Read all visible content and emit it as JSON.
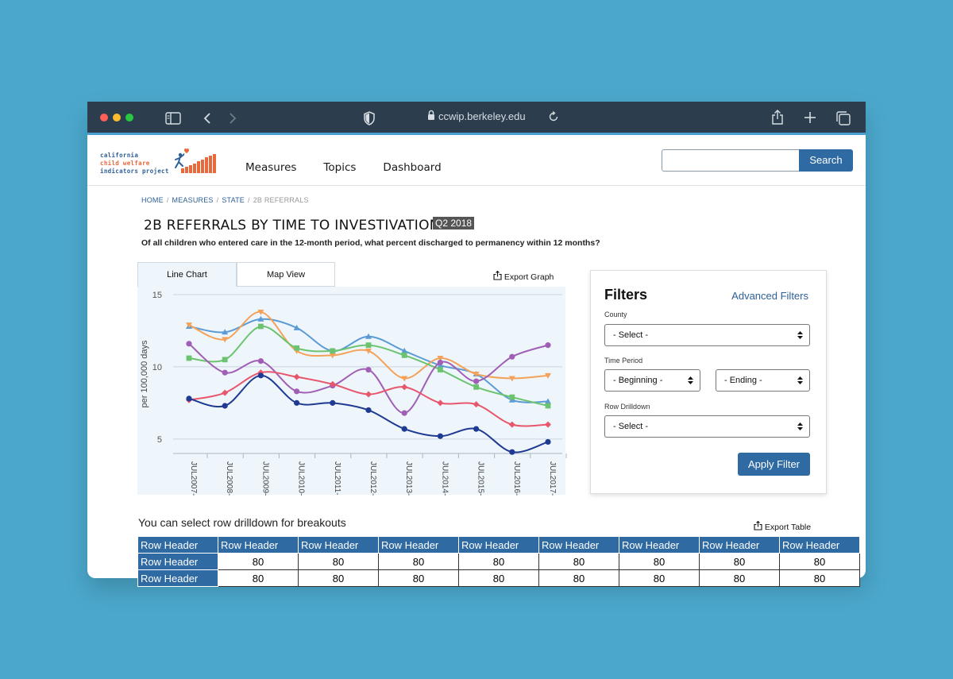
{
  "browser": {
    "url": "ccwip.berkeley.edu"
  },
  "logo": {
    "line1": "california",
    "line2": "child welfare",
    "line3": "indicators project"
  },
  "nav": {
    "items": [
      "Measures",
      "Topics",
      "Dashboard"
    ]
  },
  "search": {
    "button_label": "Search",
    "placeholder": ""
  },
  "breadcrumb": {
    "items": [
      "HOME",
      "MEASURES",
      "STATE"
    ],
    "current": "2B REFERRALS"
  },
  "page": {
    "title": "2B REFERRALS BY TIME TO INVESTIVATION",
    "badge": "Q2 2018",
    "subtitle": "Of all children who entered care in the 12-month period, what percent discharged to permanency within 12 months?"
  },
  "tabs": {
    "line_chart": "Line Chart",
    "map_view": "Map View"
  },
  "export_graph_label": "Export Graph",
  "export_table_label": "Export Table",
  "chart_data": {
    "type": "line",
    "ylabel": "per 100,000 days",
    "xlabel": "",
    "ylim": [
      4,
      15
    ],
    "yticks": [
      5,
      10,
      15
    ],
    "categories": [
      "JUL2007-",
      "JUL2008-",
      "JUL2009-",
      "JUL2010-",
      "JUL2011-",
      "JUL2012-",
      "JUL2013-",
      "JUL2014-",
      "JUL2015-",
      "JUL2016-",
      "JUL2017-"
    ],
    "series": [
      {
        "color": "#5b9bd5",
        "marker": "triangle",
        "values": [
          12.8,
          12.4,
          13.3,
          12.7,
          11.1,
          12.1,
          11.1,
          10.1,
          9.5,
          7.7,
          7.6
        ]
      },
      {
        "color": "#f4a259",
        "marker": "triangle-down",
        "values": [
          12.9,
          11.9,
          13.8,
          11.1,
          10.8,
          11.1,
          9.2,
          10.6,
          9.5,
          9.2,
          9.4
        ]
      },
      {
        "color": "#6cc36f",
        "marker": "square",
        "values": [
          10.6,
          10.5,
          12.8,
          11.3,
          11.1,
          11.5,
          10.8,
          9.8,
          8.6,
          7.9,
          7.3
        ]
      },
      {
        "color": "#a05fb5",
        "marker": "circle",
        "values": [
          11.6,
          9.6,
          10.4,
          8.3,
          8.7,
          9.8,
          6.8,
          10.3,
          9.0,
          10.7,
          11.5
        ]
      },
      {
        "color": "#e8566c",
        "marker": "diamond",
        "values": [
          7.7,
          8.2,
          9.6,
          9.3,
          8.8,
          8.1,
          8.6,
          7.5,
          7.4,
          6.0,
          6.0
        ]
      },
      {
        "color": "#1f3a93",
        "marker": "circle",
        "values": [
          7.8,
          7.3,
          9.4,
          7.5,
          7.5,
          7.0,
          5.7,
          5.2,
          5.7,
          4.1,
          4.8
        ]
      }
    ]
  },
  "filters": {
    "title": "Filters",
    "advanced": "Advanced Filters",
    "county_label": "County",
    "county_value": "- Select -",
    "time_label": "Time Period",
    "beginning": "- Beginning -",
    "ending": "- Ending -",
    "drill_label": "Row Drilldown",
    "drill_value": "- Select -",
    "apply": "Apply Filter"
  },
  "drilldown_text": "You can select row drilldown for breakouts",
  "table": {
    "headers": [
      "Row Header",
      "Row Header",
      "Row Header",
      "Row Header",
      "Row Header",
      "Row Header",
      "Row Header",
      "Row Header",
      "Row Header"
    ],
    "rows": [
      {
        "label": "Row Header",
        "values": [
          "80",
          "80",
          "80",
          "80",
          "80",
          "80",
          "80",
          "80"
        ]
      },
      {
        "label": "Row Header",
        "values": [
          "80",
          "80",
          "80",
          "80",
          "80",
          "80",
          "80",
          "80"
        ]
      }
    ]
  },
  "colors": {
    "accent": "#2f6aa3",
    "background": "#4ba8cc",
    "titlebar": "#2c3e4d"
  }
}
